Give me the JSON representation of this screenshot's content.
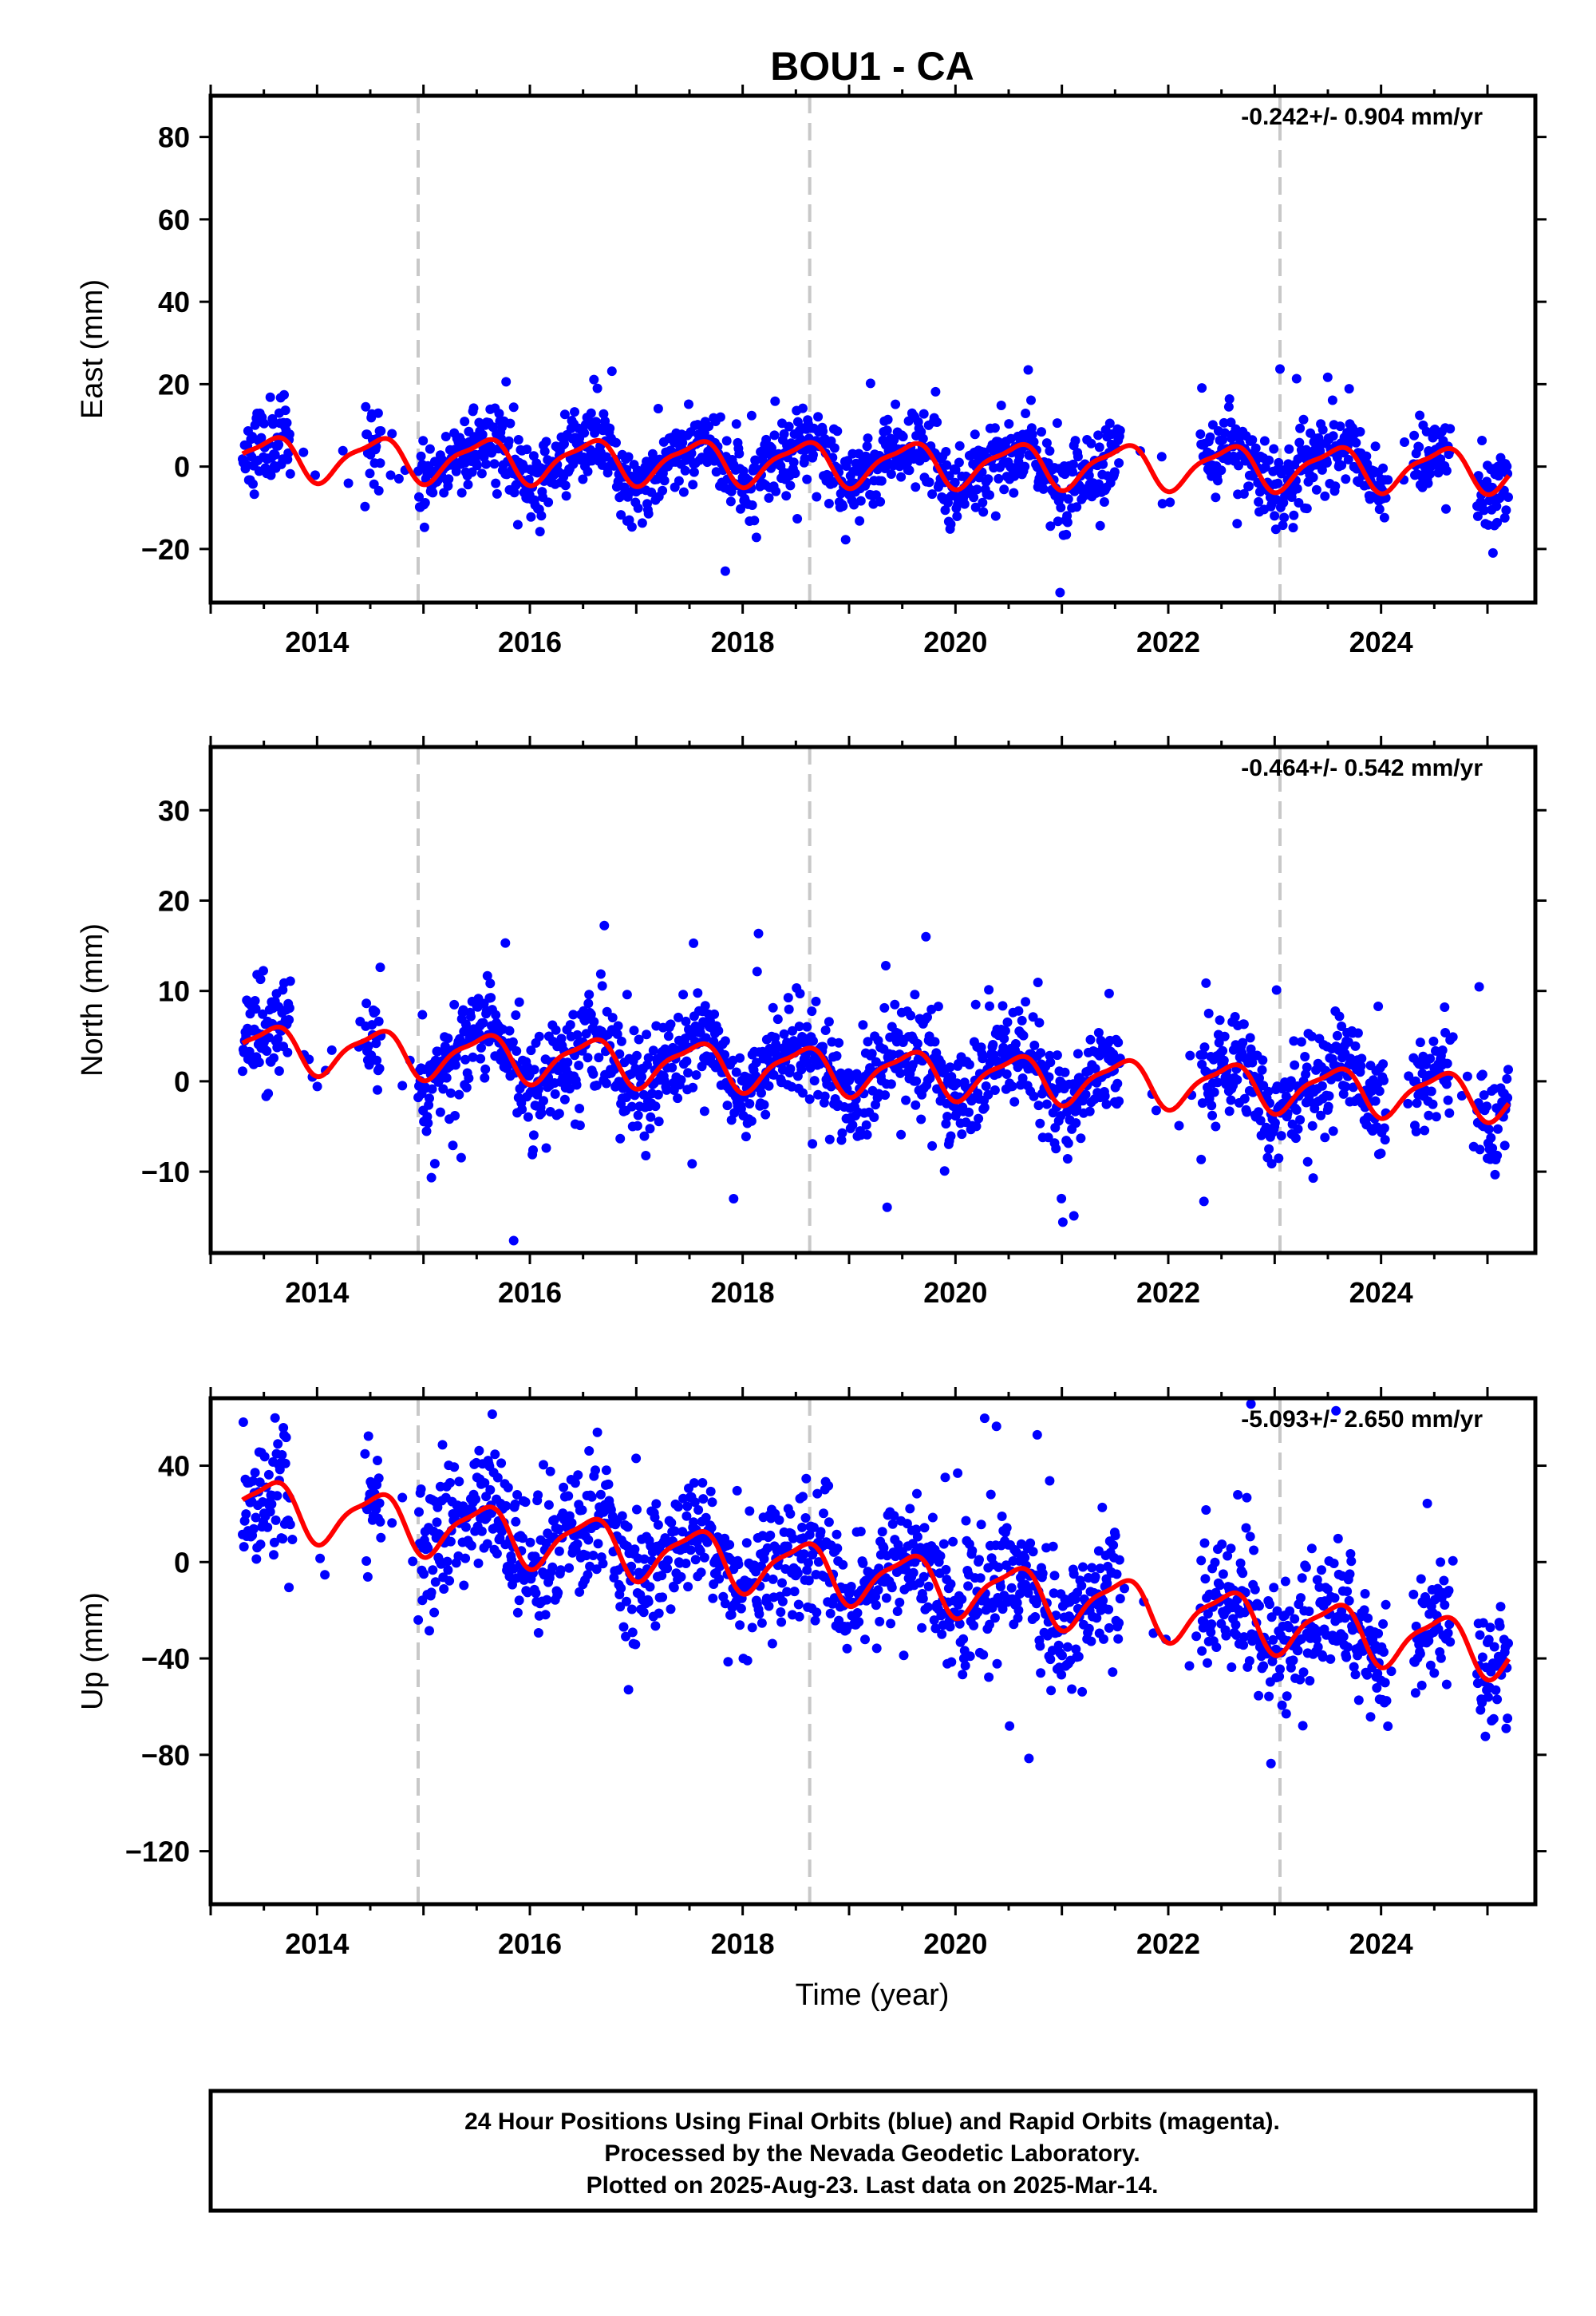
{
  "chart_data": {
    "type": "scatter",
    "title": "BOU1 - CA",
    "xlabel": "Time (year)",
    "xlim": [
      2013.0,
      2025.45
    ],
    "xticks": [
      2014,
      2016,
      2018,
      2020,
      2022,
      2024
    ],
    "xtick_labels": [
      "2014",
      "2016",
      "2018",
      "2020",
      "2022",
      "2024"
    ],
    "event_lines_x": [
      2014.95,
      2018.63,
      2023.05
    ],
    "data_range_x": [
      2013.3,
      2025.2
    ],
    "colors": {
      "points": "#0000ff",
      "model": "#ff0000",
      "event_lines": "#c8c8c8",
      "frame": "#000000"
    },
    "panels": [
      {
        "ylabel": "East (mm)",
        "ylim": [
          -33,
          90
        ],
        "yticks": [
          80,
          60,
          40,
          20,
          0,
          -20
        ],
        "ytick_labels": [
          "80",
          "60",
          "40",
          "20",
          "0",
          "−20"
        ],
        "rate": "-0.242+/- 0.904 mm/yr",
        "trend_mm_per_yr": -0.242,
        "model_offset_mm": 2.2,
        "annual_amp_mm": 5.0,
        "semiannual_amp_mm": 1.5,
        "scatter_sd_mm": 4.5,
        "seed": 11
      },
      {
        "ylabel": "North (mm)",
        "ylim": [
          -19,
          37
        ],
        "yticks": [
          30,
          20,
          10,
          0,
          -10
        ],
        "ytick_labels": [
          "30",
          "20",
          "10",
          "0",
          "−10"
        ],
        "rate": "-0.464+/- 0.542 mm/yr",
        "trend_mm_per_yr": -0.464,
        "model_offset_mm": 3.8,
        "annual_amp_mm": 2.4,
        "semiannual_amp_mm": 0.7,
        "scatter_sd_mm": 2.8,
        "seed": 23
      },
      {
        "ylabel": "Up (mm)",
        "ylim": [
          -142,
          68
        ],
        "yticks": [
          40,
          0,
          -40,
          -80,
          -120
        ],
        "ytick_labels": [
          "40",
          "0",
          "−40",
          "−80",
          "−120"
        ],
        "rate": "-5.093+/- 2.650 mm/yr",
        "trend_mm_per_yr": -5.093,
        "model_offset_mm": 24,
        "annual_amp_mm": 11,
        "semiannual_amp_mm": 3,
        "scatter_sd_mm": 13,
        "seed": 37
      }
    ],
    "footer": [
      "24 Hour Positions Using Final Orbits (blue) and Rapid Orbits (magenta).",
      "Processed by the Nevada Geodetic Laboratory.",
      "Plotted on 2025-Aug-23. Last data on 2025-Mar-14."
    ]
  }
}
